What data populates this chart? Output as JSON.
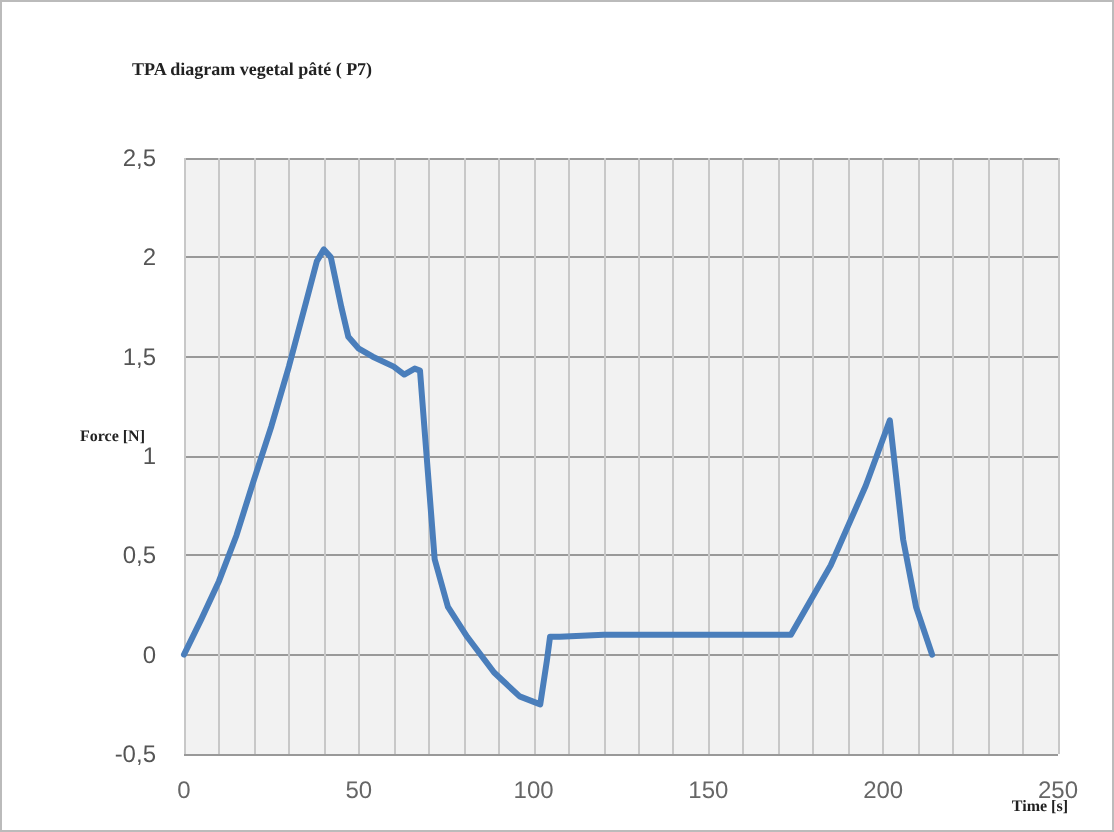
{
  "chart_data": {
    "type": "line",
    "title": "TPA diagram vegetal pâté ( P7)",
    "xlabel": "Time [s]",
    "ylabel": "Force [N]",
    "x": [
      0,
      5,
      10,
      15,
      20,
      25,
      30,
      35,
      38,
      40,
      42,
      45,
      47,
      50,
      54,
      60,
      63,
      66,
      67.5,
      69,
      71.7,
      75.5,
      81,
      88.7,
      96,
      101.9,
      103.8,
      104.7,
      107.5,
      120,
      140,
      160,
      173.6,
      185,
      195,
      201.9,
      205.7,
      209.4,
      214
    ],
    "series": [
      {
        "color": "#4a7ebb",
        "values": [
          0,
          0.18,
          0.37,
          0.6,
          0.88,
          1.15,
          1.45,
          1.78,
          1.98,
          2.04,
          2.0,
          1.75,
          1.6,
          1.54,
          1.5,
          1.45,
          1.41,
          1.44,
          1.43,
          1.09,
          0.48,
          0.24,
          0.09,
          -0.09,
          -0.21,
          -0.25,
          -0.03,
          0.09,
          0.09,
          0.1,
          0.1,
          0.1,
          0.1,
          0.45,
          0.85,
          1.18,
          0.58,
          0.24,
          0
        ]
      }
    ],
    "xlim": [
      0,
      250
    ],
    "xticks": [
      0,
      {
        "value": 10,
        "label": null
      },
      {
        "value": 20,
        "label": null
      },
      {
        "value": 30,
        "label": null
      },
      {
        "value": 40,
        "label": null
      },
      50,
      {
        "value": 60,
        "label": null
      },
      {
        "value": 70,
        "label": null
      },
      {
        "value": 80,
        "label": null
      },
      {
        "value": 90,
        "label": null
      },
      100,
      {
        "value": 110,
        "label": null
      },
      {
        "value": 120,
        "label": null
      },
      {
        "value": 130,
        "label": null
      },
      {
        "value": 140,
        "label": null
      },
      150,
      {
        "value": 160,
        "label": null
      },
      {
        "value": 170,
        "label": null
      },
      {
        "value": 180,
        "label": null
      },
      {
        "value": 190,
        "label": null
      },
      200,
      {
        "value": 210,
        "label": null
      },
      {
        "value": 220,
        "label": null
      },
      {
        "value": 230,
        "label": null
      },
      {
        "value": 240,
        "label": null
      },
      250
    ],
    "ylim": [
      -0.5,
      2.5
    ],
    "yticks": [
      {
        "value": -0.5,
        "label": "-0,5"
      },
      0,
      {
        "value": 0.5,
        "label": "0,5"
      },
      1,
      {
        "value": 1.5,
        "label": "1,5"
      },
      2,
      {
        "value": 2.5,
        "label": "2,5"
      }
    ],
    "grid": true,
    "marker": "none",
    "line_style": "solid"
  }
}
